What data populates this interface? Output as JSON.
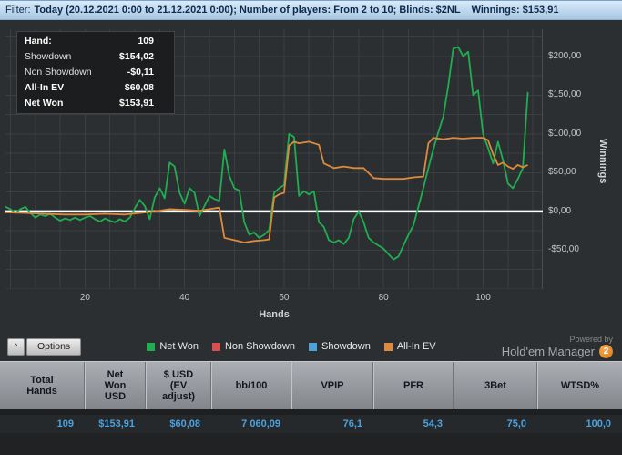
{
  "filter_bar": {
    "label": "Filter:",
    "text": "Today (20.12.2021 0:00 to 21.12.2021 0:00); Number of players: From 2 to 10; Blinds: $2NL",
    "winnings": "Winnings: $153,91"
  },
  "info_box": {
    "rows": [
      {
        "label": "Hand:",
        "value": "109"
      },
      {
        "label": "Showdown",
        "value": "$154,02"
      },
      {
        "label": "Non Showdown",
        "value": "-$0,11"
      },
      {
        "label": "All-In EV",
        "value": "$60,08"
      },
      {
        "label": "Net Won",
        "value": "$153,91"
      }
    ]
  },
  "chart_data": {
    "type": "line",
    "xlabel": "Hands",
    "ylabel": "Winnings",
    "xlim": [
      4,
      112
    ],
    "ylim": [
      -100,
      235
    ],
    "grid": true,
    "grid_color": "#3b3f42",
    "zero_line_color": "#ffffff",
    "x_ticks": [
      20,
      40,
      60,
      80,
      100
    ],
    "y_ticks": [
      {
        "value": 200,
        "label": "$200,00"
      },
      {
        "value": 150,
        "label": "$150,00"
      },
      {
        "value": 100,
        "label": "$100,00"
      },
      {
        "value": 50,
        "label": "$50,00"
      },
      {
        "value": 0,
        "label": "$0,00"
      },
      {
        "value": -50,
        "label": "-$50,00"
      }
    ],
    "series": [
      {
        "name": "Net Won",
        "color": "#1fae50",
        "points": [
          [
            1,
            2
          ],
          [
            2,
            4
          ],
          [
            3,
            2
          ],
          [
            4,
            6
          ],
          [
            5,
            3
          ],
          [
            6,
            -2
          ],
          [
            7,
            3
          ],
          [
            8,
            6
          ],
          [
            9,
            -2
          ],
          [
            10,
            -8
          ],
          [
            11,
            -4
          ],
          [
            12,
            -6
          ],
          [
            13,
            -3
          ],
          [
            14,
            -8
          ],
          [
            15,
            -12
          ],
          [
            16,
            -9
          ],
          [
            17,
            -11
          ],
          [
            18,
            -8
          ],
          [
            19,
            -11
          ],
          [
            20,
            -8
          ],
          [
            21,
            -6
          ],
          [
            22,
            -10
          ],
          [
            23,
            -13
          ],
          [
            24,
            -9
          ],
          [
            25,
            -12
          ],
          [
            26,
            -14
          ],
          [
            27,
            -10
          ],
          [
            28,
            -13
          ],
          [
            29,
            -8
          ],
          [
            30,
            4
          ],
          [
            31,
            15
          ],
          [
            32,
            7
          ],
          [
            33,
            -10
          ],
          [
            34,
            18
          ],
          [
            35,
            30
          ],
          [
            36,
            17
          ],
          [
            37,
            63
          ],
          [
            38,
            58
          ],
          [
            39,
            24
          ],
          [
            40,
            10
          ],
          [
            41,
            30
          ],
          [
            42,
            24
          ],
          [
            43,
            -6
          ],
          [
            44,
            7
          ],
          [
            45,
            20
          ],
          [
            46,
            16
          ],
          [
            47,
            14
          ],
          [
            48,
            80
          ],
          [
            49,
            46
          ],
          [
            50,
            30
          ],
          [
            51,
            27
          ],
          [
            52,
            -14
          ],
          [
            53,
            -30
          ],
          [
            54,
            -27
          ],
          [
            55,
            -34
          ],
          [
            56,
            -30
          ],
          [
            57,
            -24
          ],
          [
            58,
            24
          ],
          [
            59,
            30
          ],
          [
            60,
            34
          ],
          [
            61,
            100
          ],
          [
            62,
            96
          ],
          [
            63,
            20
          ],
          [
            64,
            26
          ],
          [
            65,
            22
          ],
          [
            66,
            26
          ],
          [
            67,
            -14
          ],
          [
            68,
            -20
          ],
          [
            69,
            -37
          ],
          [
            70,
            -40
          ],
          [
            71,
            -37
          ],
          [
            72,
            -42
          ],
          [
            73,
            -34
          ],
          [
            74,
            -10
          ],
          [
            75,
            0
          ],
          [
            76,
            -14
          ],
          [
            77,
            -34
          ],
          [
            78,
            -40
          ],
          [
            79,
            -44
          ],
          [
            80,
            -48
          ],
          [
            81,
            -55
          ],
          [
            82,
            -62
          ],
          [
            83,
            -58
          ],
          [
            84,
            -44
          ],
          [
            85,
            -30
          ],
          [
            86,
            -18
          ],
          [
            87,
            6
          ],
          [
            88,
            30
          ],
          [
            89,
            56
          ],
          [
            90,
            80
          ],
          [
            91,
            102
          ],
          [
            92,
            122
          ],
          [
            93,
            162
          ],
          [
            94,
            210
          ],
          [
            95,
            212
          ],
          [
            96,
            200
          ],
          [
            97,
            206
          ],
          [
            98,
            150
          ],
          [
            99,
            156
          ],
          [
            100,
            100
          ],
          [
            101,
            82
          ],
          [
            102,
            62
          ],
          [
            103,
            90
          ],
          [
            104,
            66
          ],
          [
            105,
            36
          ],
          [
            106,
            30
          ],
          [
            107,
            42
          ],
          [
            108,
            56
          ],
          [
            109,
            154
          ]
        ]
      },
      {
        "name": "All-In EV",
        "color": "#dd8a3d",
        "points": [
          [
            1,
            0
          ],
          [
            4,
            -1
          ],
          [
            8,
            -2
          ],
          [
            12,
            -3
          ],
          [
            16,
            -4
          ],
          [
            20,
            -4
          ],
          [
            24,
            -3
          ],
          [
            28,
            -4
          ],
          [
            31,
            -2
          ],
          [
            34,
            0
          ],
          [
            37,
            3
          ],
          [
            40,
            2
          ],
          [
            43,
            1
          ],
          [
            45,
            3
          ],
          [
            47,
            5
          ],
          [
            48,
            -34
          ],
          [
            50,
            -37
          ],
          [
            52,
            -40
          ],
          [
            54,
            -38
          ],
          [
            56,
            -37
          ],
          [
            57,
            -36
          ],
          [
            58,
            18
          ],
          [
            59,
            22
          ],
          [
            60,
            24
          ],
          [
            61,
            85
          ],
          [
            62,
            90
          ],
          [
            63,
            88
          ],
          [
            65,
            90
          ],
          [
            67,
            86
          ],
          [
            68,
            62
          ],
          [
            70,
            56
          ],
          [
            72,
            58
          ],
          [
            74,
            56
          ],
          [
            76,
            56
          ],
          [
            78,
            43
          ],
          [
            80,
            42
          ],
          [
            82,
            42
          ],
          [
            84,
            42
          ],
          [
            86,
            44
          ],
          [
            88,
            45
          ],
          [
            89,
            88
          ],
          [
            90,
            95
          ],
          [
            92,
            93
          ],
          [
            94,
            95
          ],
          [
            96,
            94
          ],
          [
            98,
            95
          ],
          [
            100,
            95
          ],
          [
            101,
            92
          ],
          [
            102,
            74
          ],
          [
            103,
            60
          ],
          [
            104,
            63
          ],
          [
            105,
            58
          ],
          [
            106,
            55
          ],
          [
            107,
            60
          ],
          [
            108,
            57
          ],
          [
            109,
            60
          ]
        ]
      }
    ]
  },
  "legend": {
    "items": [
      {
        "label": "Net Won",
        "color": "#1fae50"
      },
      {
        "label": "Non Showdown",
        "color": "#d94f4f"
      },
      {
        "label": "Showdown",
        "color": "#4da3d9"
      },
      {
        "label": "All-In EV",
        "color": "#dd8a3d"
      }
    ]
  },
  "options_button": {
    "chevron": "^",
    "label": "Options"
  },
  "powered": {
    "small": "Powered by",
    "brand": "Hold'em Manager",
    "badge": "2"
  },
  "table": {
    "headers": [
      "Total\nHands",
      "Net\nWon\nUSD",
      "$ USD\n(EV\nadjust)",
      "bb/100",
      "VPIP",
      "PFR",
      "3Bet",
      "WTSD%"
    ],
    "row": [
      "109",
      "$153,91",
      "$60,08",
      "7 060,09",
      "76,1",
      "54,3",
      "75,0",
      "100,0"
    ]
  }
}
